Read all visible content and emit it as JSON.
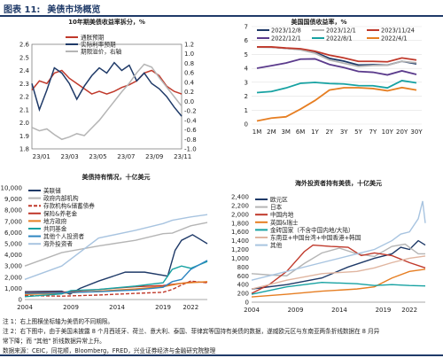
{
  "figure": {
    "label": "图表 11:",
    "title": "美债市场概览",
    "notes": [
      "注 1：右上图横坐标轴为美债的不同期限。",
      "注 2：右下图中，由于美国未披露 8 个月西班牙、荷兰、意大利、泰国、菲律宾等国持有美债的数据，遂威欧元区与东南亚两条折线数据在 8 月异",
      "常下降；而 \"其他\" 折线数据异常上升。",
      "数据来源：CEIC，同花顺，Bloomberg，FRED，兴业证券经济与金融研究院整理"
    ]
  },
  "chart_data": [
    {
      "type": "line",
      "title": "10年期美债收益率拆分，%",
      "x_ticks": [
        "23/01",
        "23/03",
        "23/05",
        "23/07",
        "23/09",
        "23/11"
      ],
      "x_range": [
        0,
        1
      ],
      "ylim_left": [
        1.8,
        2.6
      ],
      "yticks_left": [
        1.8,
        1.9,
        2.0,
        2.1,
        2.2,
        2.3,
        2.4,
        2.5,
        2.6
      ],
      "ylim_right": [
        -1.0,
        1.2
      ],
      "yticks_right": [
        -1.0,
        -0.8,
        -0.6,
        -0.4,
        -0.2,
        0.0,
        0.2,
        0.4,
        0.6,
        0.8,
        1.0,
        1.2
      ],
      "legend": "top-left",
      "series": [
        {
          "name": "通胀预期",
          "axis": "left",
          "color": "#c0392b",
          "width": 1.5,
          "x": [
            0,
            0.05,
            0.1,
            0.15,
            0.2,
            0.25,
            0.3,
            0.35,
            0.4,
            0.45,
            0.5,
            0.55,
            0.6,
            0.65,
            0.7,
            0.75,
            0.8,
            0.85,
            0.9,
            0.95,
            1.0
          ],
          "y": [
            2.25,
            2.32,
            2.3,
            2.38,
            2.4,
            2.34,
            2.3,
            2.26,
            2.22,
            2.24,
            2.22,
            2.24,
            2.27,
            2.29,
            2.32,
            2.38,
            2.4,
            2.36,
            2.28,
            2.24,
            2.22
          ]
        },
        {
          "name": "实际利率预期",
          "axis": "left",
          "color": "#1f3a68",
          "width": 1.5,
          "x": [
            0,
            0.05,
            0.1,
            0.15,
            0.2,
            0.25,
            0.3,
            0.35,
            0.4,
            0.45,
            0.5,
            0.55,
            0.6,
            0.65,
            0.7,
            0.75,
            0.8,
            0.85,
            0.9,
            0.95,
            1.0
          ],
          "y": [
            2.3,
            2.1,
            2.25,
            2.42,
            2.38,
            2.3,
            2.18,
            2.28,
            2.36,
            2.42,
            2.38,
            2.46,
            2.4,
            2.44,
            2.32,
            2.38,
            2.3,
            2.26,
            2.2,
            2.12,
            2.05
          ]
        },
        {
          "name": "期限溢价，右轴",
          "axis": "right",
          "color": "#b5b5b5",
          "width": 1.5,
          "x": [
            0,
            0.05,
            0.1,
            0.15,
            0.2,
            0.25,
            0.3,
            0.35,
            0.4,
            0.45,
            0.5,
            0.55,
            0.6,
            0.65,
            0.7,
            0.75,
            0.8,
            0.85,
            0.9,
            0.95,
            1.0
          ],
          "y": [
            -0.55,
            -0.62,
            -0.58,
            -0.7,
            -0.8,
            -0.75,
            -0.68,
            -0.72,
            -0.56,
            -0.4,
            -0.2,
            0.0,
            0.2,
            0.38,
            0.6,
            0.78,
            0.72,
            0.5,
            0.3,
            0.1,
            -0.1
          ]
        }
      ]
    },
    {
      "type": "line",
      "title": "美国国债收益率，%",
      "categories": [
        "1M",
        "2M",
        "3M",
        "6M",
        "1Y",
        "2Y",
        "3Y",
        "5Y",
        "7Y",
        "10Y",
        "20Y",
        "30Y"
      ],
      "ylim": [
        0,
        7
      ],
      "yticks": [
        0,
        1,
        2,
        3,
        4,
        5,
        6,
        7
      ],
      "legend": "top",
      "series": [
        {
          "name": "2023/12/8",
          "color": "#1f3a68",
          "values": [
            5.53,
            5.52,
            5.44,
            5.36,
            5.16,
            4.72,
            4.52,
            4.24,
            4.26,
            4.23,
            4.51,
            4.32
          ]
        },
        {
          "name": "2023/12/1",
          "color": "#b5b5b5",
          "values": [
            5.52,
            5.52,
            5.44,
            5.33,
            5.09,
            4.6,
            4.37,
            4.14,
            4.21,
            4.22,
            4.51,
            4.4
          ]
        },
        {
          "name": "2023/11/24",
          "color": "#c0392b",
          "values": [
            5.54,
            5.54,
            5.46,
            5.41,
            5.23,
            4.95,
            4.75,
            4.5,
            4.5,
            4.47,
            4.75,
            4.6
          ]
        },
        {
          "name": "2022/12/1",
          "color": "#5b3b8c",
          "values": [
            4.01,
            4.19,
            4.38,
            4.66,
            4.68,
            4.28,
            4.06,
            3.78,
            3.72,
            3.53,
            3.82,
            3.56
          ]
        },
        {
          "name": "2022/8/1",
          "color": "#17a2a2",
          "values": [
            2.26,
            2.34,
            2.59,
            2.93,
            2.99,
            2.91,
            2.88,
            2.76,
            2.75,
            2.6,
            3.12,
            2.96
          ]
        },
        {
          "name": "2022/4/1",
          "color": "#e67e22",
          "values": [
            0.22,
            0.43,
            0.52,
            1.07,
            1.69,
            2.44,
            2.61,
            2.61,
            2.55,
            2.39,
            2.62,
            2.44
          ]
        }
      ]
    },
    {
      "type": "line",
      "title": "美债持有情况，十亿美元",
      "x_ticks": [
        "2004",
        "2009",
        "2014",
        "2019",
        "2022"
      ],
      "x_range": [
        2004,
        2023.8
      ],
      "ylim": [
        0,
        10000
      ],
      "yticks": [
        0,
        1000,
        2000,
        3000,
        4000,
        5000,
        6000,
        7000,
        8000,
        9000,
        10000
      ],
      "legend": "top-left",
      "series": [
        {
          "name": "美联储",
          "color": "#1f3a68",
          "dash": "",
          "x": [
            2004,
            2008,
            2008.9,
            2010,
            2012,
            2014.9,
            2017,
            2019.5,
            2020.3,
            2021,
            2022.2,
            2023,
            2023.8
          ],
          "y": [
            700,
            750,
            480,
            1000,
            1650,
            2450,
            2450,
            2100,
            4400,
            5300,
            5800,
            5400,
            5000
          ]
        },
        {
          "name": "政府内部机构",
          "color": "#b5b5b5",
          "dash": "",
          "x": [
            2004,
            2008,
            2012,
            2016,
            2019,
            2020,
            2022,
            2023.8
          ],
          "y": [
            3000,
            4200,
            4800,
            5300,
            5900,
            5950,
            6600,
            6900
          ]
        },
        {
          "name": "存款机构&储蓄债券",
          "color": "#c0392b",
          "dash": "4,2",
          "x": [
            2004,
            2008,
            2012,
            2016,
            2019,
            2020,
            2021,
            2022,
            2023.8
          ],
          "y": [
            350,
            300,
            400,
            550,
            650,
            900,
            1300,
            1650,
            1500
          ]
        },
        {
          "name": "保险&养老金",
          "color": "#c0392b",
          "dash": "",
          "x": [
            2004,
            2008,
            2012,
            2016,
            2019,
            2021,
            2022,
            2023.8
          ],
          "y": [
            600,
            650,
            900,
            1150,
            1250,
            1450,
            1550,
            1550
          ]
        },
        {
          "name": "地方政府",
          "color": "#e67e22",
          "dash": "",
          "x": [
            2004,
            2008,
            2012,
            2016,
            2019,
            2021,
            2023.8
          ],
          "y": [
            450,
            550,
            750,
            950,
            1150,
            1450,
            1600
          ]
        },
        {
          "name": "共同基金",
          "color": "#17a2a2",
          "dash": "",
          "x": [
            2004,
            2008,
            2009,
            2012,
            2016,
            2019,
            2020,
            2021,
            2022,
            2023.8
          ],
          "y": [
            250,
            500,
            800,
            900,
            1200,
            1500,
            2700,
            3000,
            2800,
            3400
          ]
        },
        {
          "name": "其他个人投资者",
          "color": "#2e86c1",
          "dash": "",
          "x": [
            2004,
            2008,
            2012,
            2016,
            2019,
            2020,
            2021,
            2022,
            2023.8
          ],
          "y": [
            550,
            600,
            700,
            850,
            1100,
            1600,
            1800,
            2700,
            3500
          ]
        },
        {
          "name": "海外投资者",
          "color": "#a8c4e0",
          "dash": "",
          "x": [
            2004,
            2008,
            2012,
            2016,
            2019,
            2020,
            2022,
            2023.8
          ],
          "y": [
            1800,
            3000,
            5500,
            6200,
            6800,
            7100,
            7400,
            7600
          ]
        }
      ]
    },
    {
      "type": "line",
      "title": "海外投资者持有美债，十亿美元",
      "x_ticks": [
        "2004",
        "2009",
        "2014",
        "2019",
        "2022"
      ],
      "x_range": [
        2004,
        2023.8
      ],
      "ylim": [
        0,
        2400
      ],
      "yticks": [
        0,
        200,
        400,
        600,
        800,
        1000,
        1200,
        1400,
        1600,
        1800,
        2000,
        2200,
        2400
      ],
      "legend": "top-left",
      "series": [
        {
          "name": "欧元区",
          "color": "#1f3a68",
          "dash": "",
          "x": [
            2004,
            2008,
            2012,
            2015,
            2018,
            2020,
            2021,
            2022,
            2023,
            2023.8
          ],
          "y": [
            300,
            400,
            550,
            800,
            1000,
            1100,
            1250,
            1200,
            1400,
            1300
          ]
        },
        {
          "name": "日本",
          "color": "#b5b5b5",
          "dash": "",
          "x": [
            2004,
            2006,
            2008,
            2010,
            2012,
            2014,
            2016,
            2018,
            2020,
            2021.5,
            2023,
            2023.8
          ],
          "y": [
            650,
            620,
            600,
            880,
            1120,
            1230,
            1100,
            1040,
            1270,
            1320,
            1100,
            1100
          ]
        },
        {
          "name": "中国内地",
          "color": "#c0392b",
          "dash": "",
          "x": [
            2004,
            2006,
            2008,
            2010,
            2011,
            2013,
            2015,
            2016.5,
            2018,
            2020,
            2022,
            2023.8
          ],
          "y": [
            200,
            400,
            700,
            1150,
            1300,
            1270,
            1250,
            1060,
            1120,
            1060,
            900,
            780
          ]
        },
        {
          "name": "英国&瑞士",
          "color": "#e67e22",
          "dash": "",
          "x": [
            2004,
            2008,
            2012,
            2016,
            2018,
            2020,
            2022,
            2023.8
          ],
          "y": [
            120,
            180,
            250,
            300,
            350,
            550,
            700,
            750
          ]
        },
        {
          "name": "金砖国家（不含中国内地/大陆）",
          "color": "#17a2a2",
          "dash": "",
          "x": [
            2004,
            2008,
            2012,
            2016,
            2018,
            2020,
            2022,
            2023.8
          ],
          "y": [
            180,
            350,
            450,
            420,
            380,
            400,
            380,
            370
          ]
        },
        {
          "name": "东南亚+中国台湾+中国香港+韩国",
          "color": "#e0b5a0",
          "dash": "",
          "x": [
            2004,
            2008,
            2012,
            2016,
            2018,
            2020,
            2022,
            2023.8
          ],
          "y": [
            300,
            500,
            650,
            700,
            780,
            900,
            1000,
            1050
          ]
        },
        {
          "name": "其他",
          "color": "#a8c4e0",
          "dash": "",
          "x": [
            2004,
            2008,
            2012,
            2016,
            2018,
            2020,
            2021,
            2022,
            2023,
            2023.5,
            2023.8
          ],
          "y": [
            500,
            700,
            900,
            1100,
            1200,
            1400,
            1550,
            1600,
            1900,
            2300,
            1800
          ]
        }
      ]
    }
  ]
}
